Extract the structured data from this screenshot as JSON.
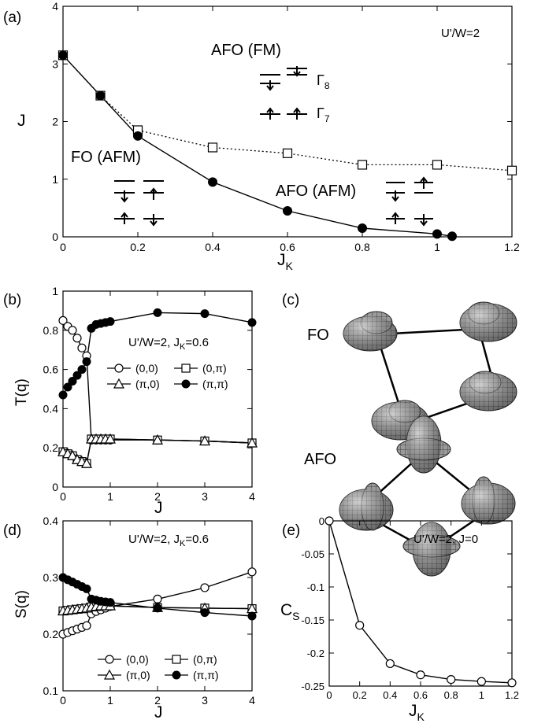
{
  "chart_data": [
    {
      "id": "a",
      "panel_label": "(a)",
      "type": "line",
      "annotation": "U'/W=2",
      "xlabel_main": "J",
      "xlabel_sub": "K",
      "ylabel": "J",
      "xlim": [
        0,
        1.2
      ],
      "ylim": [
        0,
        4
      ],
      "xticks": [
        "0",
        "0.2",
        "0.4",
        "0.6",
        "0.8",
        "1",
        "1.2"
      ],
      "yticks": [
        "0",
        "1",
        "2",
        "3",
        "4"
      ],
      "series": [
        {
          "marker": "square-open",
          "line": "dotted",
          "x": [
            0,
            0.1,
            0.2,
            0.4,
            0.6,
            0.8,
            1.0,
            1.2
          ],
          "y": [
            3.15,
            2.45,
            1.85,
            1.55,
            1.45,
            1.25,
            1.25,
            1.15
          ]
        },
        {
          "marker": "circle-filled",
          "line": "solid",
          "x": [
            0,
            0.1,
            0.2,
            0.4,
            0.6,
            0.8,
            1.0,
            1.04
          ],
          "y": [
            3.15,
            2.45,
            1.75,
            0.95,
            0.45,
            0.15,
            0.05,
            0.01
          ]
        }
      ],
      "region_labels": [
        "AFO (FM)",
        "FO (AFM)",
        "AFO (AFM)"
      ],
      "gamma_labels": {
        "g8_main": "Γ",
        "g8_sub": "8",
        "g7_main": "Γ",
        "g7_sub": "7"
      }
    },
    {
      "id": "b",
      "panel_label": "(b)",
      "type": "line",
      "annotation_main": "U'/W=2, J",
      "annotation_sub": "K",
      "annotation_tail": "=0.6",
      "xlabel": "J",
      "ylabel": "T(q)",
      "xlim": [
        0,
        4
      ],
      "ylim": [
        0,
        1
      ],
      "xticks": [
        "0",
        "1",
        "2",
        "3",
        "4"
      ],
      "yticks": [
        "0",
        "0.2",
        "0.4",
        "0.6",
        "0.8",
        "1"
      ],
      "series": [
        {
          "name": "(0,0)",
          "marker": "circle-open",
          "x": [
            0,
            0.1,
            0.2,
            0.3,
            0.4,
            0.5,
            0.6,
            0.7,
            0.8,
            0.9,
            1.0,
            2,
            3,
            4
          ],
          "y": [
            0.85,
            0.82,
            0.8,
            0.76,
            0.71,
            0.67,
            0.24,
            0.24,
            0.24,
            0.24,
            0.24,
            0.24,
            0.235,
            0.225
          ]
        },
        {
          "name": "(0,π)",
          "marker": "square-open",
          "x": [
            0,
            0.1,
            0.2,
            0.3,
            0.4,
            0.5,
            0.6,
            0.7,
            0.8,
            0.9,
            1.0,
            2,
            3,
            4
          ],
          "y": [
            0.18,
            0.17,
            0.16,
            0.14,
            0.13,
            0.12,
            0.245,
            0.245,
            0.245,
            0.245,
            0.245,
            0.24,
            0.235,
            0.225
          ]
        },
        {
          "name": "(π,0)",
          "marker": "triangle-open",
          "x": [
            0,
            0.1,
            0.2,
            0.3,
            0.4,
            0.5,
            0.6,
            0.7,
            0.8,
            0.9,
            1.0,
            2,
            3,
            4
          ],
          "y": [
            0.18,
            0.17,
            0.16,
            0.14,
            0.13,
            0.12,
            0.245,
            0.245,
            0.245,
            0.245,
            0.245,
            0.24,
            0.235,
            0.225
          ]
        },
        {
          "name": "(π,π)",
          "marker": "circle-filled",
          "x": [
            0,
            0.1,
            0.2,
            0.3,
            0.4,
            0.5,
            0.6,
            0.7,
            0.8,
            0.9,
            1.0,
            2,
            3,
            4
          ],
          "y": [
            0.47,
            0.51,
            0.54,
            0.57,
            0.6,
            0.64,
            0.81,
            0.83,
            0.835,
            0.84,
            0.845,
            0.89,
            0.885,
            0.84
          ]
        }
      ]
    },
    {
      "id": "d",
      "panel_label": "(d)",
      "type": "line",
      "annotation_main": "U'/W=2, J",
      "annotation_sub": "K",
      "annotation_tail": "=0.6",
      "xlabel": "J",
      "ylabel": "S(q)",
      "xlim": [
        0,
        4
      ],
      "ylim": [
        0.1,
        0.4
      ],
      "xticks": [
        "0",
        "1",
        "2",
        "3",
        "4"
      ],
      "yticks": [
        "0.1",
        "0.2",
        "0.3",
        "0.4"
      ],
      "series": [
        {
          "name": "(0,0)",
          "marker": "circle-open",
          "x": [
            0,
            0.1,
            0.2,
            0.3,
            0.4,
            0.5,
            0.6,
            0.7,
            0.8,
            0.9,
            1.0,
            2,
            3,
            4
          ],
          "y": [
            0.2,
            0.203,
            0.206,
            0.209,
            0.212,
            0.215,
            0.236,
            0.24,
            0.243,
            0.246,
            0.249,
            0.262,
            0.282,
            0.31
          ]
        },
        {
          "name": "(0,π)",
          "marker": "square-open",
          "x": [
            0,
            0.1,
            0.2,
            0.3,
            0.4,
            0.5,
            0.6,
            0.7,
            0.8,
            0.9,
            1.0,
            2,
            3,
            4
          ],
          "y": [
            0.241,
            0.242,
            0.243,
            0.244,
            0.245,
            0.246,
            0.248,
            0.249,
            0.25,
            0.25,
            0.25,
            0.247,
            0.246,
            0.245
          ]
        },
        {
          "name": "(π,0)",
          "marker": "triangle-open",
          "x": [
            0,
            0.1,
            0.2,
            0.3,
            0.4,
            0.5,
            0.6,
            0.7,
            0.8,
            0.9,
            1.0,
            2,
            3,
            4
          ],
          "y": [
            0.241,
            0.242,
            0.243,
            0.244,
            0.245,
            0.246,
            0.248,
            0.249,
            0.25,
            0.25,
            0.25,
            0.247,
            0.246,
            0.245
          ]
        },
        {
          "name": "(π,π)",
          "marker": "circle-filled",
          "x": [
            0,
            0.1,
            0.2,
            0.3,
            0.4,
            0.5,
            0.6,
            0.7,
            0.8,
            0.9,
            1.0,
            2,
            3,
            4
          ],
          "y": [
            0.3,
            0.296,
            0.292,
            0.288,
            0.284,
            0.28,
            0.262,
            0.26,
            0.258,
            0.257,
            0.256,
            0.246,
            0.238,
            0.232
          ]
        }
      ]
    },
    {
      "id": "e",
      "panel_label": "(e)",
      "type": "line",
      "annotation": "U'/W=2, J=0",
      "xlabel_main": "J",
      "xlabel_sub": "K",
      "ylabel_main": "C",
      "ylabel_sub": "S",
      "xlim": [
        0,
        1.2
      ],
      "ylim": [
        -0.25,
        0
      ],
      "xticks": [
        "0",
        "0.2",
        "0.4",
        "0.6",
        "0.8",
        "1",
        "1.2"
      ],
      "yticks": [
        "0",
        "-0.05",
        "-0.1",
        "-0.15",
        "-0.2",
        "-0.25"
      ],
      "series": [
        {
          "marker": "circle-open",
          "x": [
            0,
            0.2,
            0.4,
            0.6,
            0.8,
            1.0,
            1.2
          ],
          "y": [
            0,
            -0.158,
            -0.216,
            -0.233,
            -0.24,
            -0.243,
            -0.245
          ]
        }
      ]
    }
  ],
  "panel_c": {
    "label": "(c)",
    "fo_label": "FO",
    "afo_label": "AFO"
  }
}
